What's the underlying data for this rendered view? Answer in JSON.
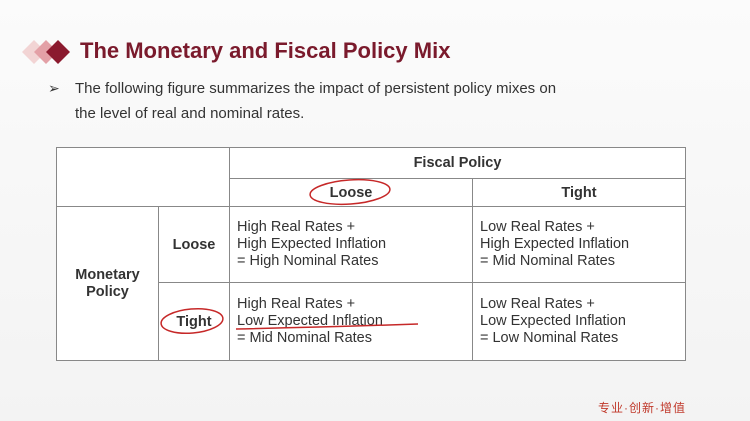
{
  "header": {
    "title": "The Monetary and Fiscal Policy Mix"
  },
  "bullet": {
    "lines": [
      "The following figure summarizes the impact of persistent policy mixes on",
      "the level of real and nominal rates."
    ]
  },
  "table": {
    "column_group": "Fiscal Policy",
    "columns": [
      "Loose",
      "Tight"
    ],
    "row_group": [
      "Monetary",
      "Policy"
    ],
    "rows": [
      "Loose",
      "Tight"
    ],
    "cells": [
      [
        [
          "High Real Rates +",
          "High Expected Inflation",
          "=  High Nominal Rates"
        ],
        [
          "Low Real Rates +",
          "High Expected Inflation",
          "= Mid Nominal Rates"
        ]
      ],
      [
        [
          "High Real Rates +",
          "Low Expected Inflation",
          "= Mid Nominal Rates"
        ],
        [
          "Low Real Rates +",
          "Low Expected Inflation",
          "= Low Nominal Rates"
        ]
      ]
    ]
  },
  "footer": {
    "tagline": "专业·创新·增值"
  }
}
